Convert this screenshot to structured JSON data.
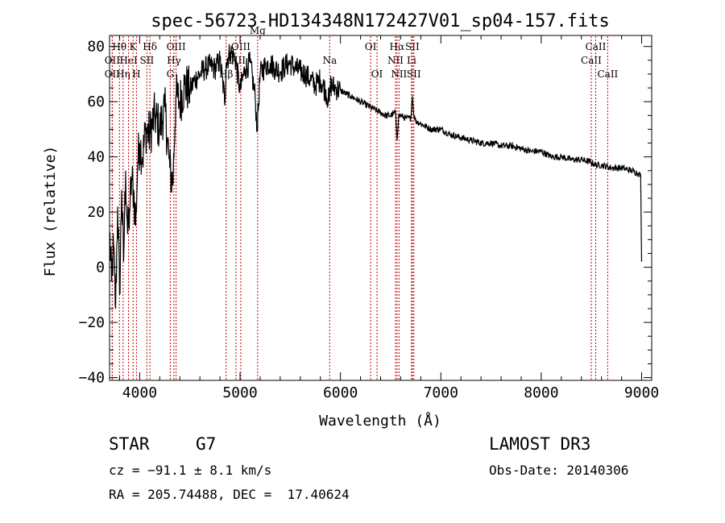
{
  "chart_data": {
    "type": "line",
    "title": "spec-56723-HD134348N172427V01_sp04-157.fits",
    "xlabel": "Wavelength (Å)",
    "ylabel": "Flux (relative)",
    "xlim": [
      3700,
      9100
    ],
    "ylim": [
      -41,
      84
    ],
    "xticks": [
      4000,
      5000,
      6000,
      7000,
      8000,
      9000
    ],
    "yticks": [
      -40,
      -20,
      0,
      20,
      40,
      60,
      80
    ],
    "grid": false,
    "series": [
      {
        "name": "flux",
        "x": [
          3700,
          3720,
          3740,
          3760,
          3780,
          3800,
          3820,
          3840,
          3860,
          3880,
          3900,
          3920,
          3940,
          3960,
          3980,
          4000,
          4030,
          4060,
          4100,
          4150,
          4200,
          4250,
          4300,
          4330,
          4360,
          4400,
          4450,
          4500,
          4550,
          4600,
          4650,
          4700,
          4750,
          4800,
          4850,
          4860,
          4900,
          4950,
          5000,
          5050,
          5100,
          5150,
          5170,
          5200,
          5250,
          5300,
          5350,
          5400,
          5450,
          5500,
          5550,
          5600,
          5650,
          5700,
          5750,
          5800,
          5850,
          5890,
          5900,
          5950,
          6000,
          6050,
          6100,
          6150,
          6200,
          6250,
          6300,
          6350,
          6400,
          6450,
          6500,
          6550,
          6563,
          6580,
          6600,
          6650,
          6700,
          6716,
          6731,
          6750,
          6800,
          6900,
          7000,
          7100,
          7200,
          7300,
          7400,
          7500,
          7600,
          7700,
          7800,
          7900,
          8000,
          8100,
          8200,
          8300,
          8400,
          8500,
          8542,
          8600,
          8700,
          8800,
          8900,
          8970,
          8990,
          9000
        ],
        "y": [
          13,
          -5,
          8,
          -15,
          22,
          -10,
          28,
          2,
          35,
          12,
          20,
          32,
          28,
          15,
          38,
          45,
          40,
          50,
          48,
          55,
          50,
          58,
          36,
          30,
          62,
          60,
          66,
          64,
          68,
          70,
          72,
          73,
          72,
          75,
          60,
          74,
          78,
          76,
          64,
          72,
          74,
          62,
          50,
          70,
          73,
          74,
          72,
          71,
          73,
          74,
          72,
          71,
          70,
          68,
          66,
          68,
          64,
          60,
          66,
          65,
          64,
          63,
          62,
          61,
          60,
          59,
          58,
          57,
          56,
          55,
          55,
          56,
          46,
          55,
          55,
          54,
          54,
          62,
          55,
          53,
          52,
          50,
          50,
          48,
          47,
          46,
          45,
          45,
          44,
          44,
          43,
          42,
          42,
          40,
          40,
          39,
          39,
          38,
          37,
          37,
          36,
          36,
          35,
          34,
          33,
          2
        ]
      }
    ],
    "spectral_lines": [
      {
        "label": "OII",
        "x": 3727,
        "row": 3
      },
      {
        "label": "OII",
        "x": 3727,
        "row": 2
      },
      {
        "label": "Hθ",
        "x": 3798,
        "row": 1
      },
      {
        "label": "Hη",
        "x": 3835,
        "row": 3
      },
      {
        "label": "HeI",
        "x": 3889,
        "row": 2
      },
      {
        "label": "K",
        "x": 3934,
        "row": 1
      },
      {
        "label": "H",
        "x": 3968,
        "row": 3
      },
      {
        "label": "SII",
        "x": 4072,
        "row": 2
      },
      {
        "label": "Hδ",
        "x": 4102,
        "row": 1
      },
      {
        "label": "G",
        "x": 4305,
        "row": 3
      },
      {
        "label": "Hγ",
        "x": 4341,
        "row": 2
      },
      {
        "label": "OIII",
        "x": 4363,
        "row": 1
      },
      {
        "label": "Hβ",
        "x": 4861,
        "row": 3
      },
      {
        "label": "OIII",
        "x": 4959,
        "row": 2
      },
      {
        "label": "OIII",
        "x": 5007,
        "row": 1
      },
      {
        "label": "Mg",
        "x": 5175,
        "row": 0
      },
      {
        "label": "Na",
        "x": 5893,
        "row": 2
      },
      {
        "label": "OI",
        "x": 6300,
        "row": 1
      },
      {
        "label": "OI",
        "x": 6364,
        "row": 3
      },
      {
        "label": "NII",
        "x": 6548,
        "row": 2
      },
      {
        "label": "Hα",
        "x": 6563,
        "row": 1
      },
      {
        "label": "NII",
        "x": 6583,
        "row": 3
      },
      {
        "label": "Li",
        "x": 6708,
        "row": 2
      },
      {
        "label": "SII",
        "x": 6716,
        "row": 1
      },
      {
        "label": "SII",
        "x": 6731,
        "row": 3
      },
      {
        "label": "CaII",
        "x": 8498,
        "row": 2
      },
      {
        "label": "CaII",
        "x": 8542,
        "row": 1
      },
      {
        "label": "CaII",
        "x": 8662,
        "row": 3
      }
    ]
  },
  "info": {
    "object_class": "STAR",
    "subclass": "G7",
    "survey": "LAMOST DR3",
    "cz": "cz = −91.1 ± 8.1 km/s",
    "obs_date": "Obs-Date: 20140306",
    "coords": "RA = 205.74488, DEC =  17.40624"
  }
}
